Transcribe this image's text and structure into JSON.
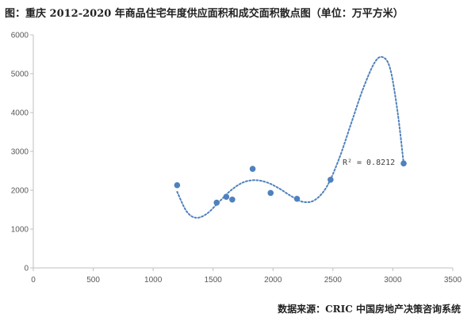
{
  "title": "图：重庆 2012-2020 年商品住宅年度供应面积和成交面积散点图（单位：万平方米）",
  "source": "数据来源：CRIC 中国房地产决策咨询系统",
  "chart_data": {
    "type": "scatter",
    "title": "图：重庆 2012-2020 年商品住宅年度供应面积和成交面积散点图（单位：万平方米）",
    "xlabel": "",
    "ylabel": "",
    "xlim": [
      0,
      3500
    ],
    "ylim": [
      0,
      6000
    ],
    "xticks": [
      0,
      500,
      1000,
      1500,
      2000,
      2500,
      3000,
      3500
    ],
    "yticks": [
      0,
      1000,
      2000,
      3000,
      4000,
      5000,
      6000
    ],
    "grid": false,
    "legend": "none",
    "marker_color": "#4F81BD",
    "trend_color": "#4F81BD",
    "points": [
      {
        "x": 1200,
        "y": 2130
      },
      {
        "x": 1530,
        "y": 1680
      },
      {
        "x": 1610,
        "y": 1830
      },
      {
        "x": 1660,
        "y": 1760
      },
      {
        "x": 1830,
        "y": 2550
      },
      {
        "x": 1980,
        "y": 1930
      },
      {
        "x": 2200,
        "y": 1780
      },
      {
        "x": 2480,
        "y": 2270
      },
      {
        "x": 3090,
        "y": 2690
      }
    ],
    "trendline": {
      "type": "polynomial",
      "points": [
        {
          "x": 1200,
          "y": 1960
        },
        {
          "x": 1280,
          "y": 1450
        },
        {
          "x": 1360,
          "y": 1290
        },
        {
          "x": 1450,
          "y": 1400
        },
        {
          "x": 1550,
          "y": 1700
        },
        {
          "x": 1650,
          "y": 2000
        },
        {
          "x": 1750,
          "y": 2200
        },
        {
          "x": 1850,
          "y": 2260
        },
        {
          "x": 1950,
          "y": 2200
        },
        {
          "x": 2050,
          "y": 2050
        },
        {
          "x": 2150,
          "y": 1850
        },
        {
          "x": 2250,
          "y": 1700
        },
        {
          "x": 2350,
          "y": 1750
        },
        {
          "x": 2450,
          "y": 2100
        },
        {
          "x": 2550,
          "y": 2800
        },
        {
          "x": 2650,
          "y": 3700
        },
        {
          "x": 2750,
          "y": 4600
        },
        {
          "x": 2850,
          "y": 5300
        },
        {
          "x": 2920,
          "y": 5420
        },
        {
          "x": 2980,
          "y": 5100
        },
        {
          "x": 3040,
          "y": 4000
        },
        {
          "x": 3090,
          "y": 2690
        }
      ],
      "r2_label": "R² = 0.8212",
      "r2_anchor": {
        "x": 2580,
        "y": 2720
      }
    }
  }
}
